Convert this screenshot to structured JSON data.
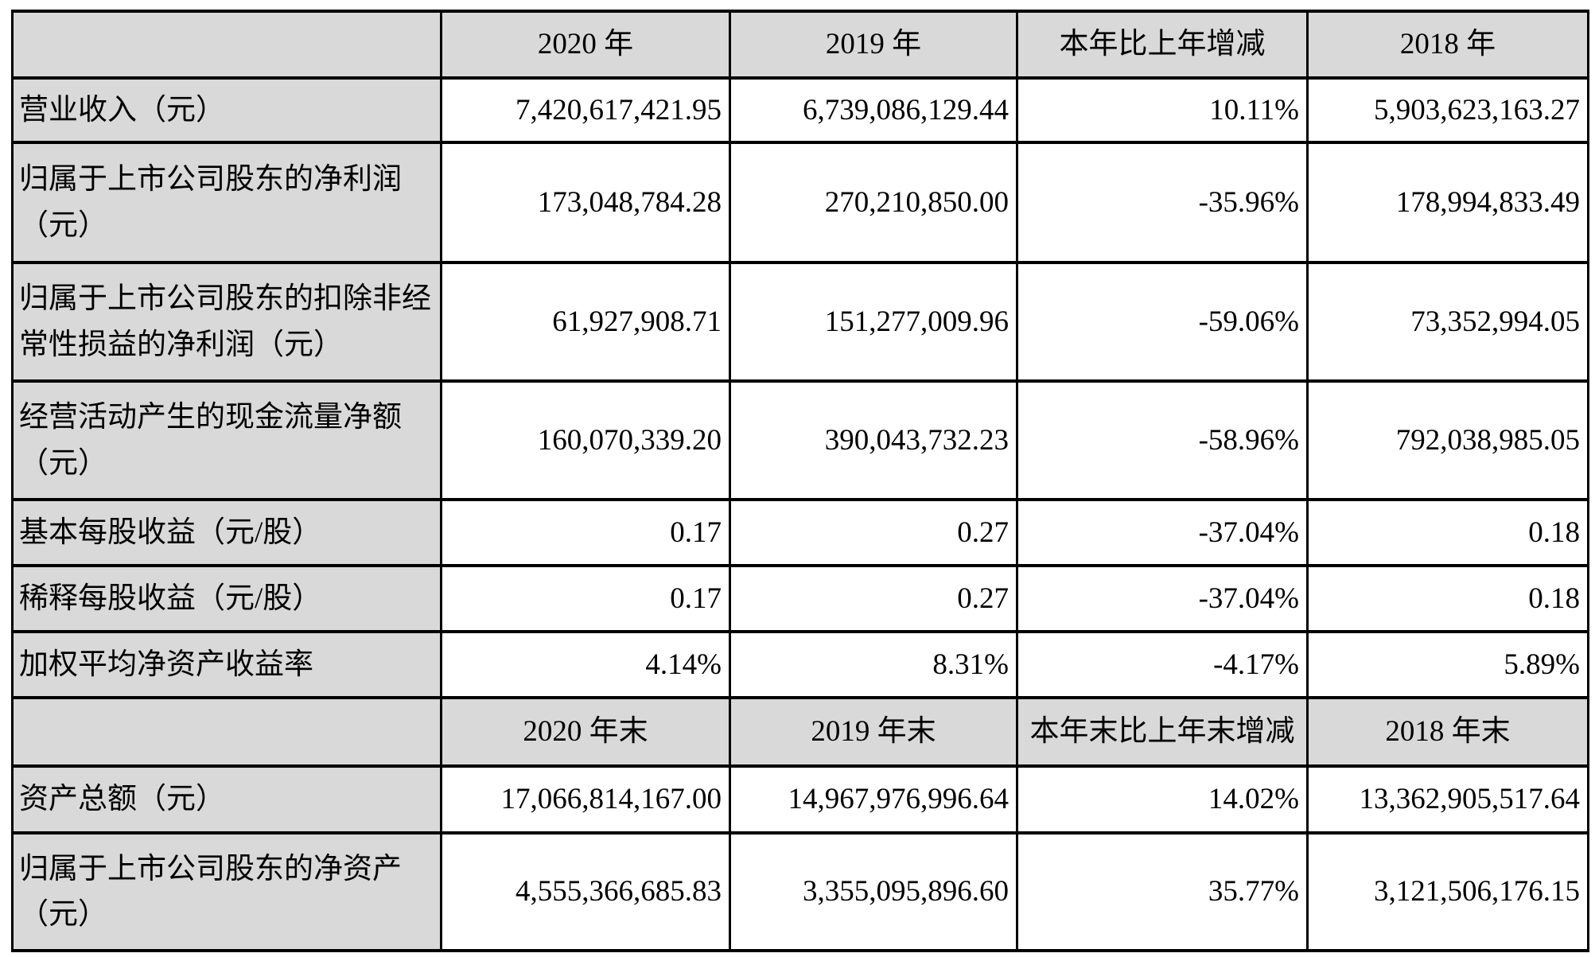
{
  "document": {
    "type": "financial-summary-table",
    "language": "zh-CN"
  },
  "colors": {
    "header_bg": "#d9d9d9",
    "border": "#000000",
    "cell_bg": "#ffffff",
    "text": "#000000"
  },
  "table": {
    "sections": [
      {
        "header": [
          "",
          "2020 年",
          "2019 年",
          "本年比上年增减",
          "2018 年"
        ],
        "rows": [
          {
            "label": "营业收入（元）",
            "values": [
              "7,420,617,421.95",
              "6,739,086,129.44",
              "10.11%",
              "5,903,623,163.27"
            ]
          },
          {
            "label": "归属于上市公司股东的净利润（元）",
            "values": [
              "173,048,784.28",
              "270,210,850.00",
              "-35.96%",
              "178,994,833.49"
            ]
          },
          {
            "label": "归属于上市公司股东的扣除非经常性损益的净利润（元）",
            "values": [
              "61,927,908.71",
              "151,277,009.96",
              "-59.06%",
              "73,352,994.05"
            ]
          },
          {
            "label": "经营活动产生的现金流量净额（元）",
            "values": [
              "160,070,339.20",
              "390,043,732.23",
              "-58.96%",
              "792,038,985.05"
            ]
          },
          {
            "label": "基本每股收益（元/股）",
            "values": [
              "0.17",
              "0.27",
              "-37.04%",
              "0.18"
            ]
          },
          {
            "label": "稀释每股收益（元/股）",
            "values": [
              "0.17",
              "0.27",
              "-37.04%",
              "0.18"
            ]
          },
          {
            "label": "加权平均净资产收益率",
            "values": [
              "4.14%",
              "8.31%",
              "-4.17%",
              "5.89%"
            ]
          }
        ]
      },
      {
        "header": [
          "",
          "2020 年末",
          "2019 年末",
          "本年末比上年末增减",
          "2018 年末"
        ],
        "rows": [
          {
            "label": "资产总额（元）",
            "values": [
              "17,066,814,167.00",
              "14,967,976,996.64",
              "14.02%",
              "13,362,905,517.64"
            ]
          },
          {
            "label": "归属于上市公司股东的净资产（元）",
            "values": [
              "4,555,366,685.83",
              "3,355,095,896.60",
              "35.77%",
              "3,121,506,176.15"
            ]
          }
        ]
      }
    ]
  }
}
